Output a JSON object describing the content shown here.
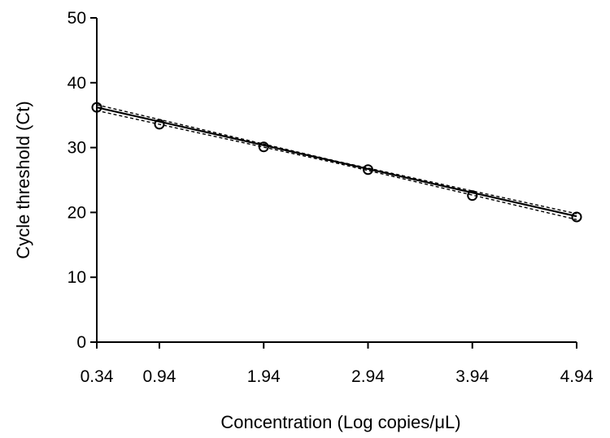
{
  "chart_data": {
    "type": "scatter",
    "title": "",
    "xlabel": "Concentration (Log copies/μL)",
    "ylabel": "Cycle threshold (Ct)",
    "xlim": [
      0.34,
      4.94
    ],
    "ylim": [
      0,
      50
    ],
    "x_ticks": [
      0.34,
      0.94,
      1.94,
      2.94,
      3.94,
      4.94
    ],
    "x_tick_labels": [
      "0.34",
      "0.94",
      "1.94",
      "2.94",
      "3.94",
      "4.94"
    ],
    "y_ticks": [
      0,
      10,
      20,
      30,
      40,
      50
    ],
    "y_tick_labels": [
      "0",
      "10",
      "20",
      "30",
      "40",
      "50"
    ],
    "grid": false,
    "legend": "none",
    "series": [
      {
        "x": [
          0.34,
          0.94,
          1.94,
          2.94,
          3.94,
          4.94
        ],
        "y": [
          36.2,
          33.6,
          30.1,
          26.6,
          22.6,
          19.3
        ],
        "marker": "open-circle",
        "color": "#000000"
      }
    ],
    "fit": {
      "type": "linear",
      "x": [
        0.34,
        4.94
      ],
      "y": [
        36.2,
        19.4
      ],
      "style": "solid",
      "color": "#000000"
    },
    "confidence_band": {
      "style": "dashed",
      "color": "#000000",
      "upper": {
        "x": [
          0.34,
          2.64,
          4.94
        ],
        "y": [
          36.6,
          27.9,
          19.8
        ]
      },
      "lower": {
        "x": [
          0.34,
          2.64,
          4.94
        ],
        "y": [
          35.7,
          27.6,
          18.9
        ]
      }
    }
  }
}
